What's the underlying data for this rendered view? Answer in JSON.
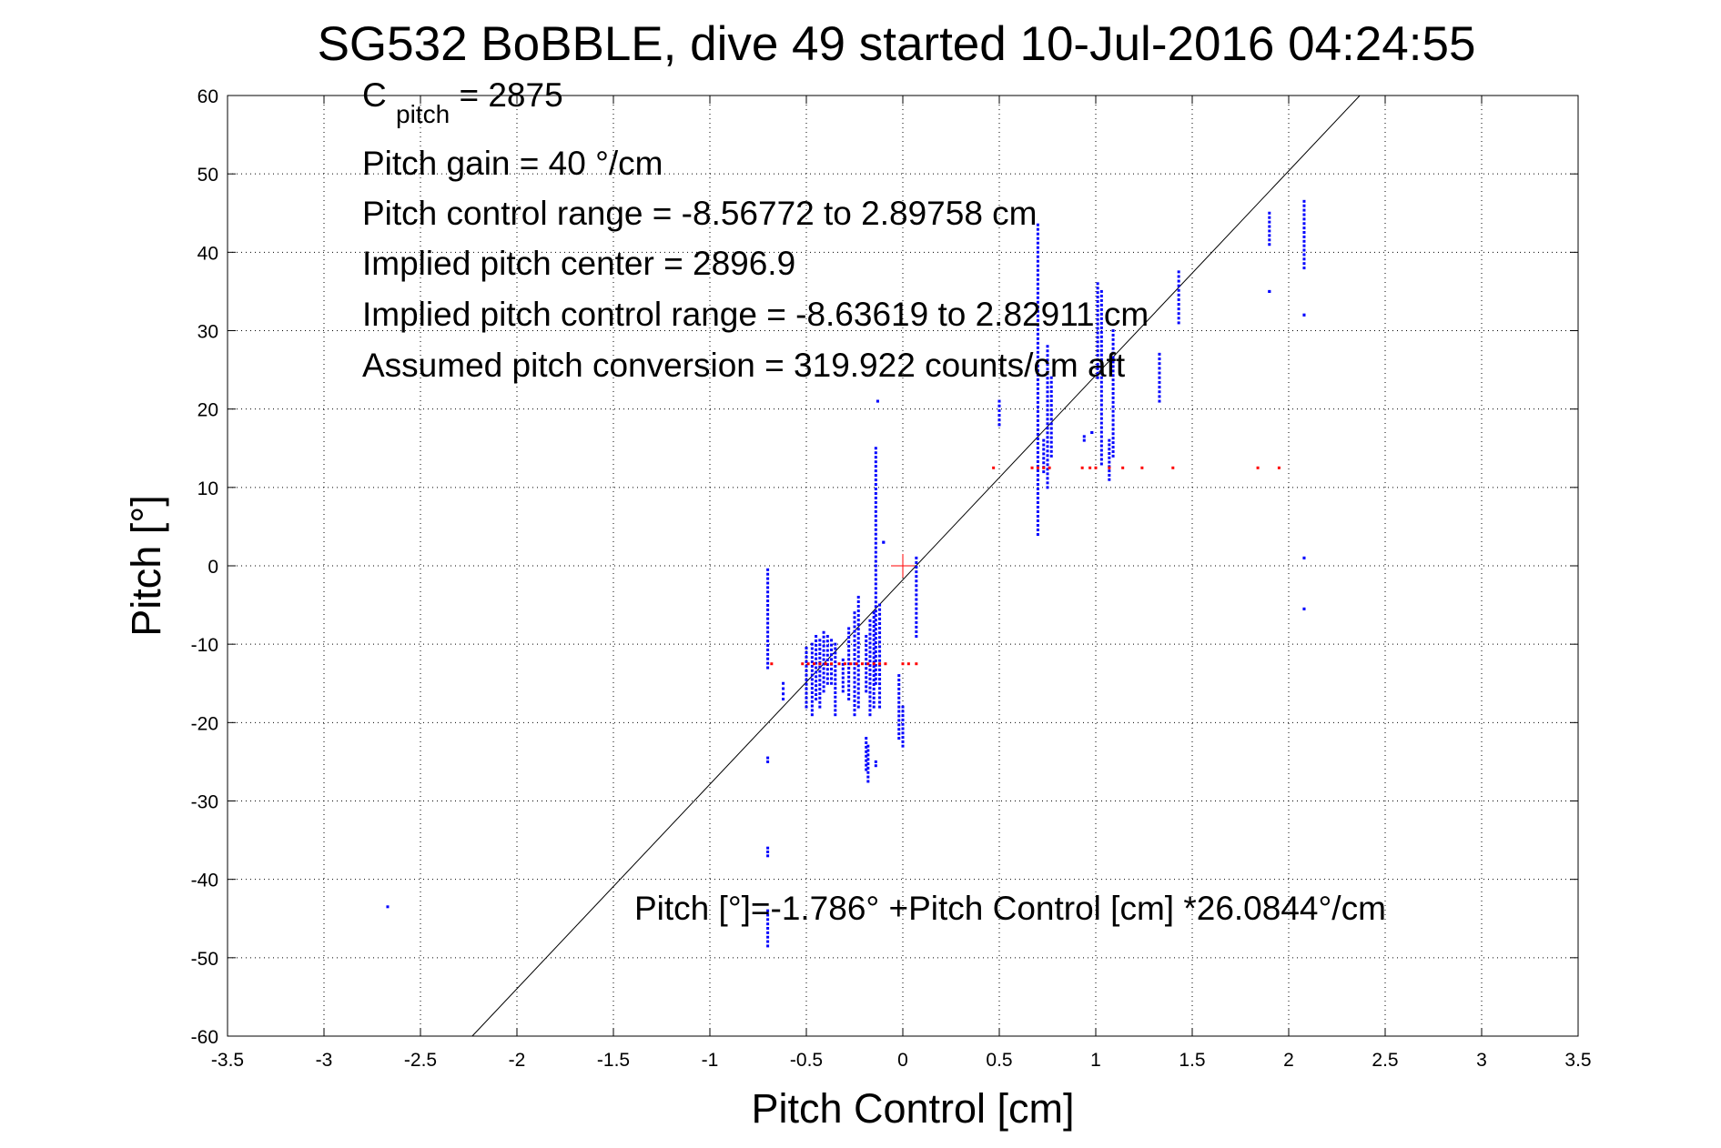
{
  "chart_data": {
    "type": "scatter",
    "title": "SG532 BoBBLE, dive 49 started 10-Jul-2016 04:24:55",
    "xlabel": "Pitch Control [cm]",
    "ylabel": "Pitch [°]",
    "xlim": [
      -3.5,
      3.5
    ],
    "ylim": [
      -60,
      60
    ],
    "xticks": [
      -3.5,
      -3,
      -2.5,
      -2,
      -1.5,
      -1,
      -0.5,
      0,
      0.5,
      1,
      1.5,
      2,
      2.5,
      3,
      3.5
    ],
    "xtick_labels": [
      "-3.5",
      "-3",
      "-2.5",
      "-2",
      "-1.5",
      "-1",
      "-0.5",
      "0",
      "0.5",
      "1",
      "1.5",
      "2",
      "2.5",
      "3",
      "3.5"
    ],
    "yticks": [
      60,
      50,
      40,
      30,
      20,
      10,
      0,
      -10,
      -20,
      -30,
      -40,
      -50,
      -60
    ],
    "ytick_labels": [
      "60",
      "50",
      "40",
      "30",
      "20",
      "10",
      "0",
      "-10",
      "-20",
      "-30",
      "-40",
      "-50",
      "-60"
    ],
    "grid": true,
    "annotations": {
      "cpitch_base": "C",
      "cpitch_sub": "pitch",
      "cpitch_value": " = 2875",
      "gain": "Pitch gain = 40 °/cm",
      "range": "Pitch control range = -8.56772 to 2.89758 cm",
      "implied_center": "Implied pitch center = 2896.9",
      "implied_range": "Implied pitch control range = -8.63619 to 2.82911 cm",
      "conversion": "Assumed pitch conversion = 319.922 counts/cm aft",
      "fit_equation": "Pitch [°]=-1.786° +Pitch Control [cm] *26.0844°/cm"
    },
    "fit_line": {
      "intercept": -1.786,
      "slope": 26.0844
    },
    "center_marker": {
      "x": 0,
      "y": 0
    },
    "series": [
      {
        "color": "#0000ff",
        "marker": "dot",
        "clusters": [
          {
            "x": -0.7,
            "y0": -13,
            "y1": -0.5
          },
          {
            "x": -0.7,
            "y0": -25,
            "y1": -24.5
          },
          {
            "x": -0.7,
            "y0": -37,
            "y1": -36
          },
          {
            "x": -0.7,
            "y0": -48.5,
            "y1": -44
          },
          {
            "x": -0.62,
            "y0": -17,
            "y1": -15
          },
          {
            "x": -0.5,
            "y0": -18,
            "y1": -10.5
          },
          {
            "x": -0.47,
            "y0": -19,
            "y1": -10
          },
          {
            "x": -0.45,
            "y0": -17,
            "y1": -9
          },
          {
            "x": -0.43,
            "y0": -18,
            "y1": -9.5
          },
          {
            "x": -0.41,
            "y0": -16,
            "y1": -8.5
          },
          {
            "x": -0.39,
            "y0": -15,
            "y1": -9
          },
          {
            "x": -0.37,
            "y0": -15,
            "y1": -9.5
          },
          {
            "x": -0.35,
            "y0": -19,
            "y1": -10
          },
          {
            "x": -0.31,
            "y0": -16,
            "y1": -12
          },
          {
            "x": -0.28,
            "y0": -17,
            "y1": -8
          },
          {
            "x": -0.25,
            "y0": -19,
            "y1": -6
          },
          {
            "x": -0.23,
            "y0": -18,
            "y1": -4
          },
          {
            "x": -0.19,
            "y0": -16,
            "y1": -9
          },
          {
            "x": -0.19,
            "y0": -26,
            "y1": -22
          },
          {
            "x": -0.18,
            "y0": -27.5,
            "y1": -23
          },
          {
            "x": -0.17,
            "y0": -19,
            "y1": -7
          },
          {
            "x": -0.15,
            "y0": -18,
            "y1": -6
          },
          {
            "x": -0.14,
            "y0": -15,
            "y1": 15
          },
          {
            "x": -0.14,
            "y0": -25.5,
            "y1": -25
          },
          {
            "x": -0.12,
            "y0": -18,
            "y1": -5
          },
          {
            "x": -0.13,
            "y0": 21,
            "y1": 21
          },
          {
            "x": -0.1,
            "y0": 3,
            "y1": 3
          },
          {
            "x": -0.02,
            "y0": -22,
            "y1": -14
          },
          {
            "x": 0.0,
            "y0": -23,
            "y1": -18
          },
          {
            "x": 0.07,
            "y0": -9,
            "y1": 1
          },
          {
            "x": 0.5,
            "y0": 18,
            "y1": 21
          },
          {
            "x": 0.7,
            "y0": 4,
            "y1": 43.5
          },
          {
            "x": 0.73,
            "y0": 12,
            "y1": 16
          },
          {
            "x": 0.75,
            "y0": 10,
            "y1": 28
          },
          {
            "x": 0.77,
            "y0": 14,
            "y1": 24
          },
          {
            "x": 0.94,
            "y0": 16,
            "y1": 16.5
          },
          {
            "x": 0.98,
            "y0": 17,
            "y1": 17
          },
          {
            "x": 1.01,
            "y0": 24,
            "y1": 36
          },
          {
            "x": 1.03,
            "y0": 13,
            "y1": 35
          },
          {
            "x": 1.07,
            "y0": 11,
            "y1": 16
          },
          {
            "x": 1.09,
            "y0": 14,
            "y1": 30
          },
          {
            "x": 1.33,
            "y0": 21,
            "y1": 27
          },
          {
            "x": 1.43,
            "y0": 31,
            "y1": 37.5
          },
          {
            "x": 1.9,
            "y0": 41,
            "y1": 45
          },
          {
            "x": 1.9,
            "y0": 35,
            "y1": 35
          },
          {
            "x": 2.08,
            "y0": 38,
            "y1": 46.5
          },
          {
            "x": 2.08,
            "y0": 32,
            "y1": 32
          },
          {
            "x": 2.08,
            "y0": 1,
            "y1": 1
          },
          {
            "x": 2.08,
            "y0": -5.5,
            "y1": -5.5
          }
        ],
        "points": [
          {
            "x": -2.67,
            "y": -43.5
          }
        ]
      },
      {
        "color": "#ff0000",
        "marker": "dot",
        "points": [
          {
            "x": -0.68,
            "y": -12.5
          },
          {
            "x": -0.52,
            "y": -12.5
          },
          {
            "x": -0.49,
            "y": -12.5
          },
          {
            "x": -0.46,
            "y": -12.5
          },
          {
            "x": -0.43,
            "y": -12.5
          },
          {
            "x": -0.4,
            "y": -12.5
          },
          {
            "x": -0.37,
            "y": -12.5
          },
          {
            "x": -0.33,
            "y": -12.5
          },
          {
            "x": -0.3,
            "y": -12.5
          },
          {
            "x": -0.27,
            "y": -12.5
          },
          {
            "x": -0.24,
            "y": -12.5
          },
          {
            "x": -0.21,
            "y": -12.5
          },
          {
            "x": -0.18,
            "y": -12.5
          },
          {
            "x": -0.15,
            "y": -12.5
          },
          {
            "x": -0.12,
            "y": -12.5
          },
          {
            "x": -0.09,
            "y": -12.5
          },
          {
            "x": 0.0,
            "y": -12.5
          },
          {
            "x": 0.03,
            "y": -12.5
          },
          {
            "x": 0.07,
            "y": -12.5
          },
          {
            "x": 0.47,
            "y": 12.5
          },
          {
            "x": 0.67,
            "y": 12.5
          },
          {
            "x": 0.7,
            "y": 12.5
          },
          {
            "x": 0.73,
            "y": 12.5
          },
          {
            "x": 0.76,
            "y": 12.5
          },
          {
            "x": 0.93,
            "y": 12.5
          },
          {
            "x": 0.97,
            "y": 12.5
          },
          {
            "x": 1.0,
            "y": 12.5
          },
          {
            "x": 1.07,
            "y": 12.5
          },
          {
            "x": 1.14,
            "y": 12.5
          },
          {
            "x": 1.24,
            "y": 12.5
          },
          {
            "x": 1.4,
            "y": 12.5
          },
          {
            "x": 1.84,
            "y": 12.5
          },
          {
            "x": 1.95,
            "y": 12.5
          }
        ]
      }
    ]
  }
}
